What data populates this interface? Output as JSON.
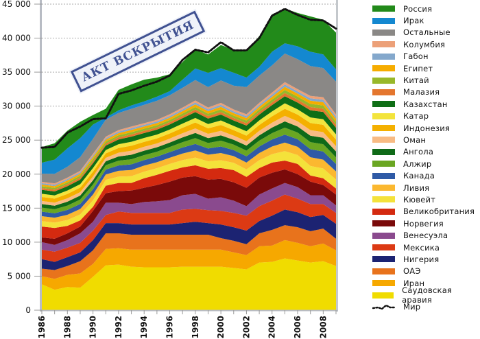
{
  "chart_data": {
    "type": "area",
    "stacked": true,
    "title": "",
    "xlabel": "",
    "ylabel": "",
    "value_units": "thousands",
    "ylim": [
      0,
      45
    ],
    "y_ticks": [
      {
        "value": 0,
        "label": "0"
      },
      {
        "value": 5,
        "label": "5 000"
      },
      {
        "value": 10,
        "label": "10 000"
      },
      {
        "value": 15,
        "label": "15 000"
      },
      {
        "value": 20,
        "label": "20 000"
      },
      {
        "value": 25,
        "label": "25 000"
      },
      {
        "value": 30,
        "label": "30 000"
      },
      {
        "value": 35,
        "label": "35 000"
      },
      {
        "value": 40,
        "label": "40 000"
      },
      {
        "value": 45,
        "label": "45 000"
      }
    ],
    "grid": "horizontal-dashed",
    "legend_position": "right",
    "x": [
      1986,
      1987,
      1988,
      1989,
      1990,
      1991,
      1992,
      1993,
      1994,
      1995,
      1996,
      1997,
      1998,
      1999,
      2000,
      2001,
      2002,
      2003,
      2004,
      2005,
      2006,
      2007,
      2008,
      2009
    ],
    "x_tick_labels": [
      "1986",
      "1988",
      "1990",
      "1992",
      "1994",
      "1996",
      "1998",
      "2000",
      "2002",
      "2004",
      "2006",
      "2008"
    ],
    "series": [
      {
        "name": "Саудовская аравия",
        "color": "#f0dc00",
        "values": [
          3.8,
          3.0,
          3.4,
          3.3,
          4.9,
          6.6,
          6.7,
          6.4,
          6.3,
          6.3,
          6.3,
          6.4,
          6.4,
          6.4,
          6.4,
          6.2,
          6.0,
          7.0,
          7.1,
          7.6,
          7.3,
          7.0,
          7.2,
          6.5
        ]
      },
      {
        "name": "Иран",
        "color": "#f6a800",
        "values": [
          1.2,
          1.6,
          1.8,
          2.1,
          1.9,
          2.4,
          2.4,
          2.5,
          2.6,
          2.6,
          2.6,
          2.5,
          2.5,
          2.5,
          2.5,
          2.3,
          2.1,
          2.4,
          2.4,
          2.7,
          2.6,
          2.4,
          2.6,
          2.3
        ]
      },
      {
        "name": "ОАЭ",
        "color": "#e8731c",
        "values": [
          1.1,
          1.3,
          1.3,
          1.8,
          2.0,
          2.3,
          2.2,
          2.2,
          2.2,
          2.2,
          2.2,
          2.2,
          2.2,
          2.2,
          1.7,
          1.7,
          1.6,
          1.9,
          2.3,
          2.2,
          2.3,
          2.2,
          2.2,
          1.7
        ]
      },
      {
        "name": "Нигерия",
        "color": "#1c2372",
        "values": [
          1.4,
          1.2,
          1.3,
          1.3,
          1.5,
          1.5,
          1.5,
          1.5,
          1.5,
          1.5,
          1.5,
          1.7,
          1.9,
          1.7,
          2.0,
          2.0,
          2.0,
          1.8,
          2.1,
          2.3,
          2.2,
          2.1,
          2.0,
          2.2
        ]
      },
      {
        "name": "Мексика",
        "color": "#dc3a14",
        "values": [
          1.4,
          1.5,
          1.4,
          1.4,
          1.4,
          1.2,
          1.7,
          1.7,
          1.7,
          1.7,
          1.7,
          2.0,
          1.9,
          1.9,
          2.0,
          2.1,
          2.2,
          2.2,
          2.2,
          2.2,
          2.0,
          1.9,
          1.6,
          1.6
        ]
      },
      {
        "name": "Венесуэла",
        "color": "#8a4a8e",
        "values": [
          1.1,
          1.0,
          1.1,
          1.4,
          1.3,
          1.8,
          1.3,
          1.3,
          1.6,
          1.7,
          1.9,
          2.1,
          2.2,
          1.7,
          2.0,
          1.8,
          1.4,
          1.7,
          1.8,
          1.7,
          1.7,
          1.3,
          1.3,
          1.1
        ]
      },
      {
        "name": "Норвегия",
        "color": "#7a0a0a",
        "values": [
          0.7,
          0.9,
          1.0,
          1.0,
          1.6,
          1.4,
          1.7,
          2.0,
          2.1,
          2.4,
          2.7,
          2.6,
          2.6,
          2.8,
          2.7,
          2.7,
          2.7,
          2.5,
          2.3,
          2.0,
          1.9,
          2.0,
          1.5,
          1.6
        ]
      },
      {
        "name": "Великобритания",
        "color": "#d42a10",
        "values": [
          1.6,
          1.6,
          1.1,
          0.9,
          0.6,
          1.1,
          1.2,
          1.1,
          1.4,
          1.5,
          1.6,
          1.5,
          1.6,
          1.6,
          1.6,
          1.8,
          1.6,
          1.4,
          1.5,
          1.3,
          1.5,
          0.9,
          1.0,
          0.9
        ]
      },
      {
        "name": "Кювейт",
        "color": "#f4e23a",
        "values": [
          0.79,
          0.78,
          0.85,
          0.88,
          0.94,
          0.86,
          0.94,
          1.0,
          0.97,
          0.97,
          1.0,
          1.06,
          1.14,
          1.08,
          1.15,
          1.07,
          1.1,
          1.15,
          1.24,
          1.38,
          1.32,
          1.4,
          1.43,
          1.31
        ]
      },
      {
        "name": "Ливия",
        "color": "#fbb830",
        "values": [
          0.73,
          0.72,
          0.78,
          0.8,
          0.86,
          0.79,
          0.86,
          0.91,
          0.89,
          0.89,
          0.91,
          0.97,
          1.05,
          0.99,
          1.06,
          0.98,
          1.01,
          1.06,
          1.13,
          1.27,
          1.21,
          1.29,
          1.31,
          1.2
        ]
      },
      {
        "name": "Канада",
        "color": "#2f5aa6",
        "values": [
          0.66,
          0.65,
          0.71,
          0.73,
          0.78,
          0.72,
          0.78,
          0.83,
          0.81,
          0.81,
          0.83,
          0.88,
          0.95,
          0.9,
          0.96,
          0.89,
          0.92,
          0.96,
          1.03,
          1.15,
          1.1,
          1.17,
          1.19,
          1.09
        ]
      },
      {
        "name": "Алжир",
        "color": "#6aa622",
        "values": [
          0.59,
          0.59,
          0.64,
          0.66,
          0.7,
          0.65,
          0.7,
          0.75,
          0.73,
          0.73,
          0.75,
          0.79,
          0.86,
          0.81,
          0.86,
          0.8,
          0.83,
          0.86,
          0.93,
          1.04,
          0.99,
          1.05,
          1.07,
          0.98
        ]
      },
      {
        "name": "Ангола",
        "color": "#0f6a18",
        "values": [
          0.53,
          0.52,
          0.57,
          0.58,
          0.62,
          0.58,
          0.62,
          0.66,
          0.65,
          0.65,
          0.66,
          0.7,
          0.76,
          0.72,
          0.77,
          0.71,
          0.74,
          0.77,
          0.82,
          0.92,
          0.88,
          0.94,
          0.95,
          0.87
        ]
      },
      {
        "name": "Оман",
        "color": "#f8bb84",
        "values": [
          0.46,
          0.46,
          0.5,
          0.51,
          0.55,
          0.5,
          0.55,
          0.58,
          0.57,
          0.57,
          0.58,
          0.62,
          0.67,
          0.63,
          0.67,
          0.62,
          0.64,
          0.67,
          0.72,
          0.81,
          0.77,
          0.82,
          0.83,
          0.76
        ]
      },
      {
        "name": "Индонезия",
        "color": "#f4b000",
        "values": [
          0.59,
          0.59,
          0.64,
          0.66,
          0.7,
          0.65,
          0.7,
          0.75,
          0.73,
          0.73,
          0.75,
          0.79,
          0.86,
          0.81,
          0.86,
          0.8,
          0.83,
          0.86,
          0.93,
          1.04,
          0.99,
          1.05,
          1.07,
          0.98
        ]
      },
      {
        "name": "Катар",
        "color": "#f3e43c",
        "values": [
          0.46,
          0.46,
          0.5,
          0.51,
          0.55,
          0.5,
          0.55,
          0.58,
          0.57,
          0.57,
          0.58,
          0.62,
          0.67,
          0.63,
          0.67,
          0.62,
          0.64,
          0.67,
          0.72,
          0.81,
          0.77,
          0.82,
          0.83,
          0.76
        ]
      },
      {
        "name": "Казахстан",
        "color": "#0f6e16",
        "values": [
          0.59,
          0.59,
          0.64,
          0.66,
          0.7,
          0.65,
          0.7,
          0.75,
          0.73,
          0.73,
          0.75,
          0.79,
          0.86,
          0.81,
          0.86,
          0.8,
          0.83,
          0.86,
          0.93,
          1.04,
          0.99,
          1.05,
          1.07,
          0.98
        ]
      },
      {
        "name": "Малазия",
        "color": "#e4762e",
        "values": [
          0.26,
          0.26,
          0.28,
          0.29,
          0.31,
          0.29,
          0.31,
          0.33,
          0.32,
          0.32,
          0.33,
          0.35,
          0.38,
          0.36,
          0.38,
          0.36,
          0.37,
          0.38,
          0.41,
          0.46,
          0.44,
          0.47,
          0.48,
          0.44
        ]
      },
      {
        "name": "Китай",
        "color": "#98b82a",
        "values": [
          0.26,
          0.26,
          0.28,
          0.29,
          0.31,
          0.29,
          0.31,
          0.33,
          0.32,
          0.32,
          0.33,
          0.35,
          0.38,
          0.36,
          0.38,
          0.36,
          0.37,
          0.38,
          0.41,
          0.46,
          0.44,
          0.47,
          0.48,
          0.44
        ]
      },
      {
        "name": "Египет",
        "color": "#f6ac00",
        "values": [
          0.26,
          0.26,
          0.28,
          0.29,
          0.31,
          0.29,
          0.31,
          0.33,
          0.32,
          0.32,
          0.33,
          0.35,
          0.38,
          0.36,
          0.38,
          0.36,
          0.37,
          0.38,
          0.41,
          0.46,
          0.44,
          0.47,
          0.48,
          0.44
        ]
      },
      {
        "name": "Габон",
        "color": "#84a8cc",
        "values": [
          0.2,
          0.2,
          0.21,
          0.22,
          0.23,
          0.22,
          0.23,
          0.25,
          0.24,
          0.24,
          0.25,
          0.26,
          0.29,
          0.27,
          0.29,
          0.27,
          0.28,
          0.29,
          0.31,
          0.35,
          0.33,
          0.35,
          0.36,
          0.33
        ]
      },
      {
        "name": "Колумбия",
        "color": "#eca078",
        "values": [
          0.2,
          0.2,
          0.21,
          0.22,
          0.23,
          0.22,
          0.23,
          0.25,
          0.24,
          0.24,
          0.25,
          0.26,
          0.29,
          0.27,
          0.29,
          0.27,
          0.28,
          0.29,
          0.31,
          0.35,
          0.33,
          0.35,
          0.36,
          0.33
        ]
      },
      {
        "name": "Остальные",
        "color": "#8a8886",
        "values": [
          1.2,
          1.4,
          1.6,
          2.0,
          2.2,
          2.5,
          2.5,
          2.6,
          2.7,
          2.8,
          2.8,
          2.9,
          3.0,
          3.0,
          3.3,
          3.5,
          4.0,
          4.0,
          4.0,
          4.2,
          4.4,
          4.4,
          4.3,
          4.8
        ]
      },
      {
        "name": "Ирак",
        "color": "#1488d0",
        "values": [
          1.6,
          2.1,
          2.7,
          2.8,
          2.1,
          0.3,
          0.4,
          0.5,
          0.5,
          0.6,
          0.6,
          1.2,
          1.7,
          2.1,
          1.8,
          1.9,
          1.4,
          1.3,
          2.0,
          1.5,
          1.9,
          2.1,
          2.0,
          1.8
        ]
      },
      {
        "name": "Россия",
        "color": "#228a1a",
        "values": [
          2.3,
          2.4,
          2.6,
          2.4,
          1.4,
          1.3,
          3.0,
          3.1,
          3.2,
          2.8,
          2.5,
          2.6,
          2.8,
          2.7,
          3.4,
          3.4,
          4.0,
          4.5,
          5.5,
          5.1,
          4.9,
          5.2,
          5.1,
          5.4
        ]
      }
    ],
    "total_line": {
      "name": "Мир",
      "style": "dotted-black",
      "values": [
        23.9,
        24.0,
        26.1,
        27.0,
        28.1,
        28.2,
        31.8,
        32.3,
        33.0,
        33.6,
        34.5,
        36.8,
        38.3,
        37.9,
        39.4,
        38.2,
        38.2,
        40.0,
        43.3,
        44.3,
        43.4,
        42.7,
        42.6,
        41.4
      ]
    }
  },
  "stamp": {
    "text": "АКТ ВСКРЫТИЯ"
  }
}
